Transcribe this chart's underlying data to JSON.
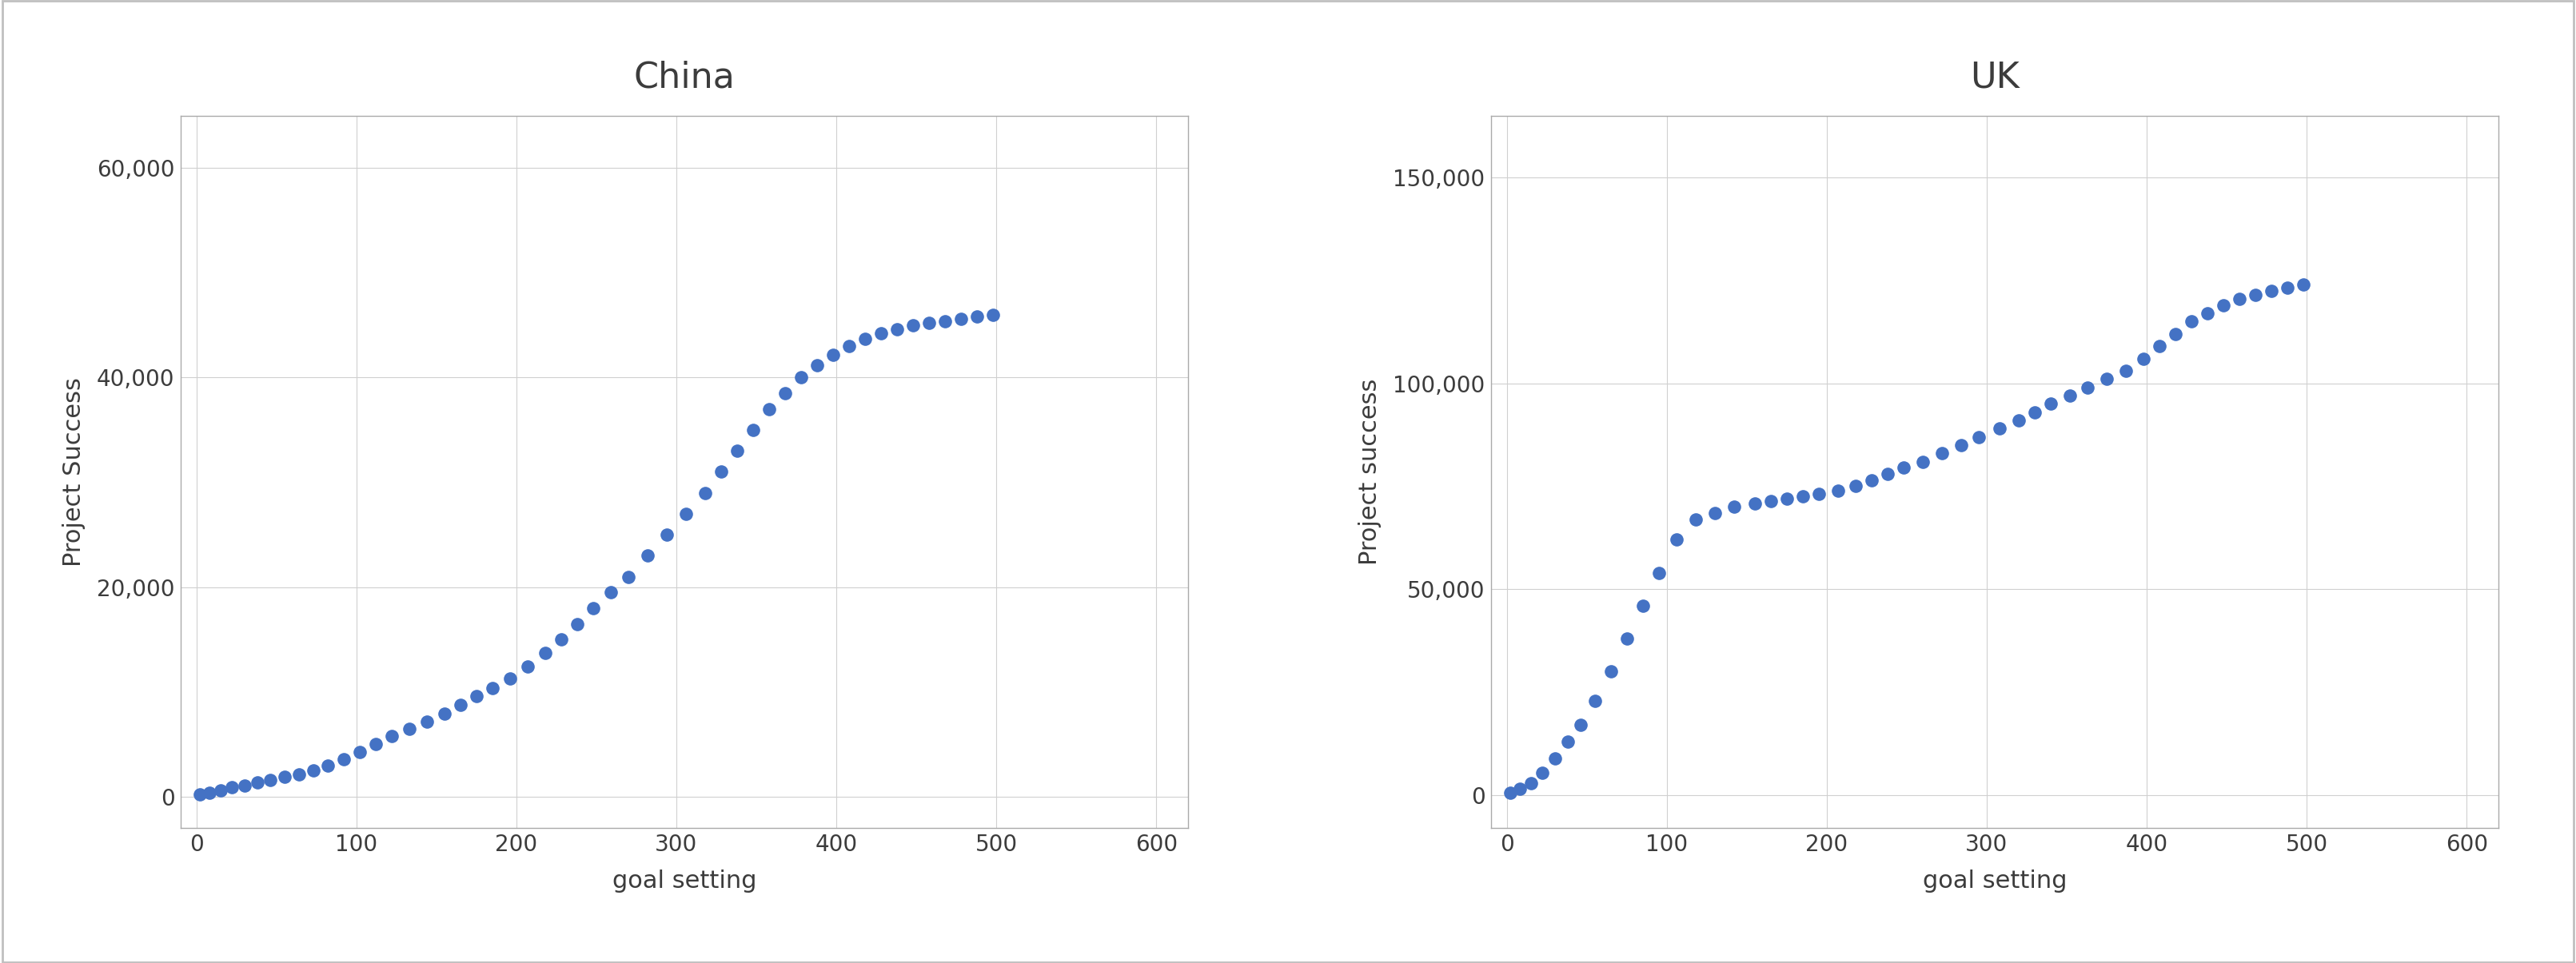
{
  "china_title": "China",
  "uk_title": "UK",
  "china_xlabel": "goal setting",
  "uk_xlabel": "goal setting",
  "china_ylabel": "Project Success",
  "uk_ylabel": "Project success",
  "china_xlim": [
    -10,
    620
  ],
  "china_ylim": [
    -3000,
    65000
  ],
  "uk_xlim": [
    -10,
    620
  ],
  "uk_ylim": [
    -8000,
    165000
  ],
  "china_xticks": [
    0,
    100,
    200,
    300,
    400,
    500,
    600
  ],
  "china_yticks": [
    0,
    20000,
    40000,
    60000
  ],
  "uk_xticks": [
    0,
    100,
    200,
    300,
    400,
    500,
    600
  ],
  "uk_yticks": [
    0,
    50000,
    100000,
    150000
  ],
  "dot_color": "#4472C4",
  "dot_size": 120,
  "title_fontsize": 32,
  "label_fontsize": 22,
  "tick_fontsize": 20,
  "grid_color": "#D0D0D0",
  "background_color": "#FFFFFF",
  "border_color": "#AAAAAA",
  "china_x": [
    2,
    8,
    15,
    22,
    30,
    38,
    46,
    55,
    64,
    73,
    82,
    92,
    102,
    112,
    122,
    133,
    144,
    155,
    165,
    175,
    185,
    196,
    207,
    218,
    228,
    238,
    248,
    259,
    270,
    282,
    294,
    306,
    318,
    328,
    338,
    348,
    358,
    368,
    378,
    388,
    398,
    408,
    418,
    428,
    438,
    448,
    458,
    468,
    478,
    488,
    498
  ],
  "china_y": [
    200,
    400,
    600,
    900,
    1100,
    1400,
    1600,
    1900,
    2100,
    2500,
    3000,
    3600,
    4300,
    5000,
    5800,
    6500,
    7200,
    7900,
    8800,
    9600,
    10400,
    11300,
    12400,
    13700,
    15000,
    16500,
    18000,
    19500,
    21000,
    23000,
    25000,
    27000,
    29000,
    31000,
    33000,
    35000,
    37000,
    38500,
    40000,
    41200,
    42200,
    43000,
    43700,
    44200,
    44600,
    45000,
    45200,
    45400,
    45600,
    45800,
    46000
  ],
  "uk_x": [
    2,
    8,
    15,
    22,
    30,
    38,
    46,
    55,
    65,
    75,
    85,
    95,
    106,
    118,
    130,
    142,
    155,
    165,
    175,
    185,
    195,
    207,
    218,
    228,
    238,
    248,
    260,
    272,
    284,
    295,
    308,
    320,
    330,
    340,
    352,
    363,
    375,
    387,
    398,
    408,
    418,
    428,
    438,
    448,
    458,
    468,
    478,
    488,
    498
  ],
  "uk_y": [
    500,
    1500,
    3000,
    5500,
    9000,
    13000,
    17000,
    23000,
    30000,
    38000,
    46000,
    54000,
    62000,
    67000,
    68500,
    70000,
    70800,
    71500,
    72000,
    72500,
    73200,
    74000,
    75000,
    76500,
    78000,
    79500,
    81000,
    83000,
    85000,
    87000,
    89000,
    91000,
    93000,
    95000,
    97000,
    99000,
    101000,
    103000,
    106000,
    109000,
    112000,
    115000,
    117000,
    119000,
    120500,
    121500,
    122500,
    123200,
    124000
  ]
}
